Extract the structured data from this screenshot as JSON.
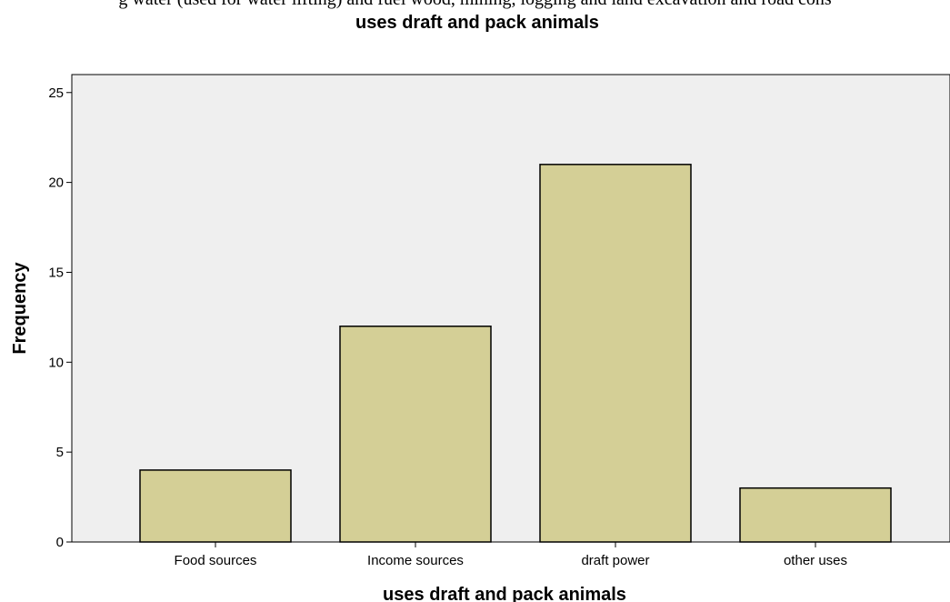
{
  "header": {
    "top_text": "g water (used for water lifting) and fuel wood, mining, logging and land excavation and road cons"
  },
  "chart_data": {
    "type": "bar",
    "title": "uses draft and pack animals",
    "xlabel": "uses draft and pack animals",
    "ylabel": "Frequency",
    "categories": [
      "Food sources",
      "Income sources",
      "draft power",
      "other uses"
    ],
    "values": [
      4,
      12,
      21,
      3
    ],
    "ylim": [
      0,
      26
    ],
    "yticks": [
      0,
      5,
      10,
      15,
      20,
      25
    ],
    "grid": false,
    "colors": {
      "bar_fill": "#d4cf96",
      "bar_stroke": "#000000",
      "plot_bg": "#efefef"
    }
  }
}
